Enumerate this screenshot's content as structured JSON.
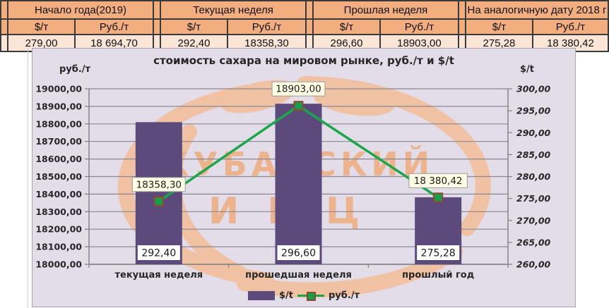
{
  "table": {
    "sub_headers": {
      "usd": "$/т",
      "rub": "Руб./т"
    },
    "groups": [
      {
        "label": "Начало года(2019)",
        "usd": "279,00",
        "rub": "18 694,70"
      },
      {
        "label": "Текущая неделя",
        "usd": "292,40",
        "rub": "18358,30"
      },
      {
        "label": "Прошлая неделя",
        "usd": "296,60",
        "rub": "18903,00"
      },
      {
        "label": "На аналогичную дату 2018 г",
        "usd": "275,28",
        "rub": "18 380,42"
      }
    ]
  },
  "chart": {
    "title": "стоимость сахара на мировом рынке, руб./т и $/t",
    "left_axis_unit": "руб./т",
    "right_axis_unit": "$/t",
    "watermark_line1": "КУБАНСКИЙ",
    "watermark_line2": "ИКЦ"
  },
  "chart_data": {
    "type": "bar+line",
    "title": "стоимость сахара на мировом рынке, руб./т и $/t",
    "categories": [
      "текущая неделя",
      "прошедшая неделя",
      "прошлый год"
    ],
    "series": [
      {
        "name": "$/t",
        "type": "bar",
        "axis": "right",
        "values": [
          292.4,
          296.6,
          275.28
        ],
        "labels": [
          "292,40",
          "296,60",
          "275,28"
        ]
      },
      {
        "name": "руб./т",
        "type": "line",
        "axis": "left",
        "values": [
          18358.3,
          18903.0,
          18380.42
        ],
        "labels": [
          "18358,30",
          "18903,00",
          "18 380,42"
        ]
      }
    ],
    "left_axis": {
      "min": 18000,
      "max": 19000,
      "step": 100
    },
    "right_axis": {
      "min": 260,
      "max": 300,
      "step": 5
    },
    "grid": true,
    "legend_position": "bottom"
  },
  "colors": {
    "bar": "#5c4a7c",
    "line": "#1ca64a",
    "marker_fill": "#13a04c",
    "marker_border": "#8f4a2a",
    "line_label_bg": "#ffffe5",
    "line_label_border": "#9b9b9b",
    "bar_label_bg": "#ffffff",
    "bar_label_border": "#5c4a7c",
    "gridline": "#8a8792",
    "axis": "#7f7f7f",
    "tick_text": "#262626",
    "chart_bg": "#e2dde9",
    "watermark": "#f3bd97",
    "watermark_text": "#efac7e",
    "table_header_bg": "#f2ae7e",
    "table_value_bg": "#fbe5d6"
  }
}
